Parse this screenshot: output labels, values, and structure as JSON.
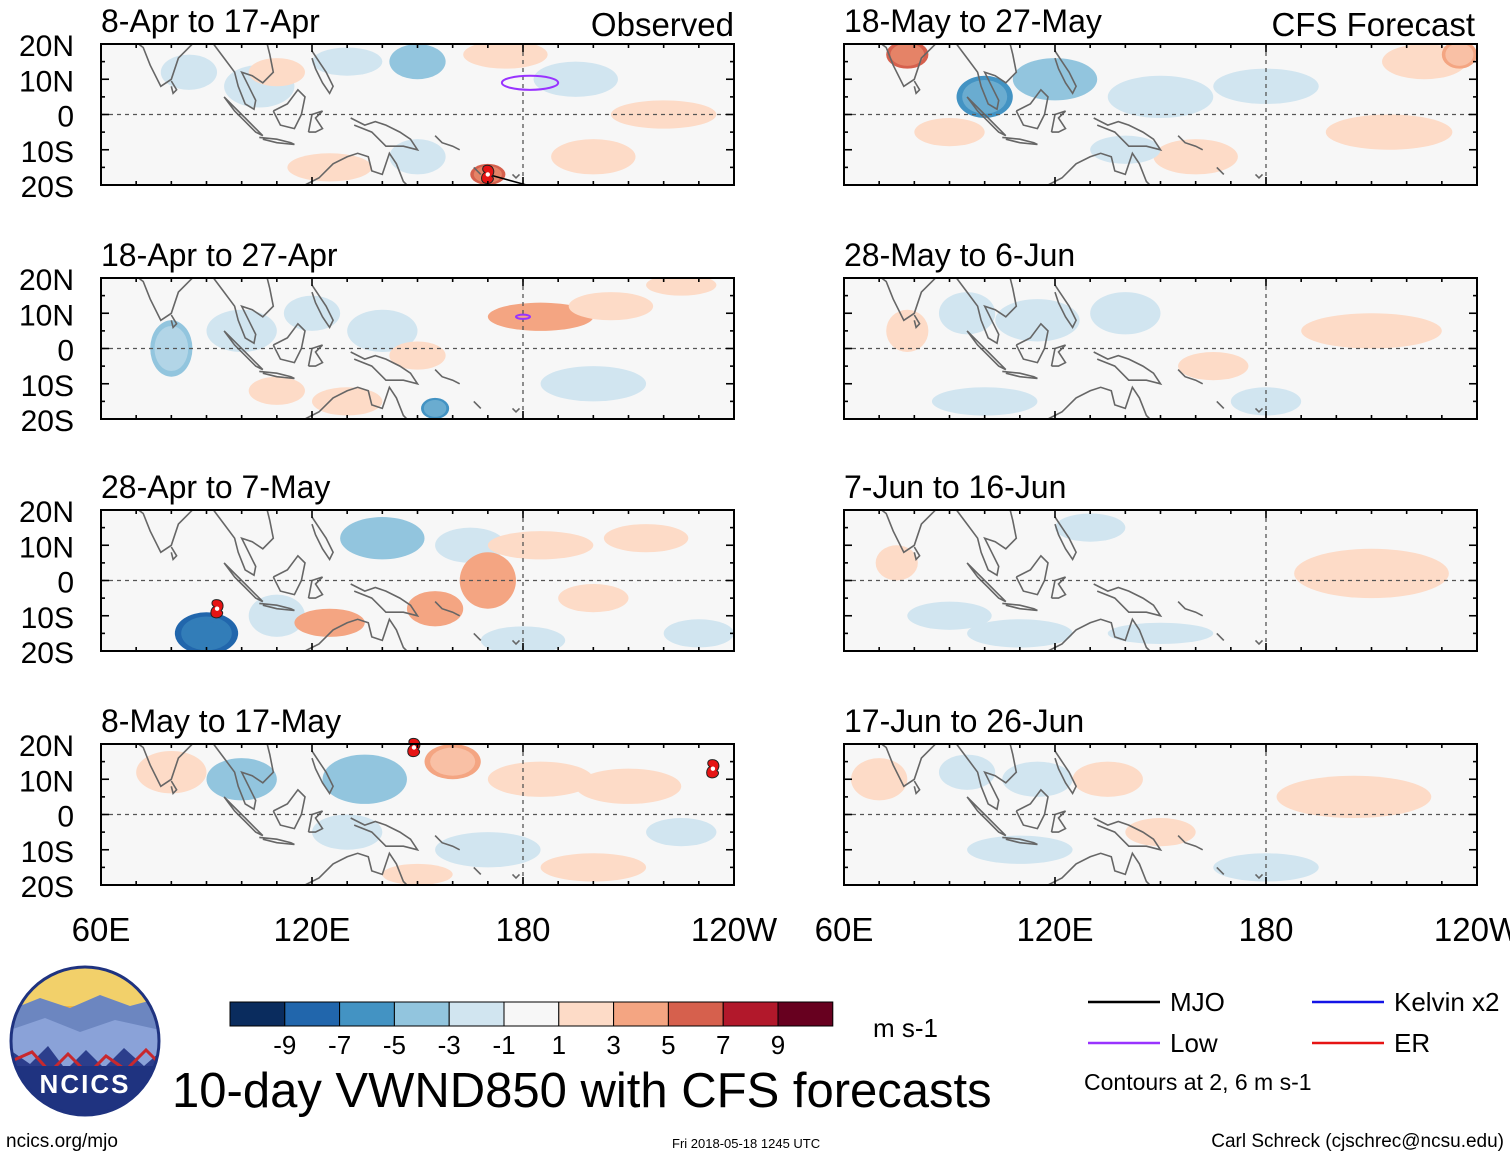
{
  "figure": {
    "title": "10-day VWND850 with CFS forecasts",
    "source_url": "ncics.org/mjo",
    "timestamp": "Fri 2018-05-18 1245 UTC",
    "credit": "Carl Schreck (cjschrec@ncsu.edu)",
    "logo_text": "NCICS",
    "column_labels": {
      "left": "Observed",
      "right": "CFS Forecast"
    }
  },
  "chart_data": {
    "type": "heatmap",
    "variable": "850-hPa meridional wind anomaly",
    "units": "m s-1",
    "x_ticks": [
      "60E",
      "120E",
      "180",
      "120W"
    ],
    "y_ticks": [
      "20N",
      "10N",
      "0",
      "10S",
      "20S"
    ],
    "xlim": [
      60,
      240
    ],
    "ylim": [
      -20,
      20
    ],
    "colorbar": {
      "levels": [
        "-9",
        "-7",
        "-5",
        "-3",
        "-1",
        "1",
        "3",
        "5",
        "7",
        "9"
      ],
      "colors": [
        "#0a2c5e",
        "#2166ac",
        "#4393c3",
        "#92c5de",
        "#d1e5f0",
        "#f7f7f7",
        "#fddbc7",
        "#f4a582",
        "#d6604d",
        "#b2182b",
        "#67001f"
      ],
      "units": "m s-1"
    },
    "panels": [
      {
        "id": "obs1",
        "title": "8-Apr to 17-Apr",
        "kind": "observed",
        "blobs": [
          [
            85,
            12,
            8,
            5,
            -2
          ],
          [
            105,
            8,
            10,
            6,
            -2
          ],
          [
            130,
            15,
            10,
            4,
            -2
          ],
          [
            150,
            15,
            8,
            5,
            -3
          ],
          [
            175,
            17,
            12,
            4,
            2
          ],
          [
            195,
            10,
            12,
            5,
            -2
          ],
          [
            150,
            -12,
            8,
            5,
            -2
          ],
          [
            170,
            -17,
            5,
            3,
            5
          ],
          [
            220,
            0,
            15,
            4,
            2
          ],
          [
            125,
            -15,
            12,
            4,
            2
          ],
          [
            110,
            12,
            8,
            4,
            2
          ],
          [
            200,
            -12,
            12,
            5,
            2
          ]
        ],
        "contours": [
          {
            "system": "Low",
            "lon": 182,
            "lat": 9,
            "rx": 8,
            "ry": 2
          }
        ],
        "mjo_track": [
          [
            170,
            -17
          ],
          [
            181,
            -20
          ],
          [
            185,
            -21
          ]
        ],
        "storms": [
          [
            170,
            -17
          ]
        ]
      },
      {
        "id": "obs2",
        "title": "18-Apr to 27-Apr",
        "kind": "observed",
        "blobs": [
          [
            80,
            0,
            6,
            8,
            -4
          ],
          [
            100,
            5,
            10,
            6,
            -2
          ],
          [
            120,
            10,
            8,
            5,
            -2
          ],
          [
            140,
            5,
            10,
            6,
            -2
          ],
          [
            155,
            -17,
            4,
            3,
            -5
          ],
          [
            130,
            -15,
            10,
            4,
            2
          ],
          [
            185,
            9,
            15,
            4,
            3
          ],
          [
            205,
            12,
            12,
            4,
            2
          ],
          [
            225,
            18,
            10,
            3,
            2
          ],
          [
            200,
            -10,
            15,
            5,
            -2
          ],
          [
            150,
            -2,
            8,
            4,
            2
          ],
          [
            110,
            -12,
            8,
            4,
            2
          ]
        ],
        "contours": [
          {
            "system": "Low",
            "lon": 180,
            "lat": 9,
            "rx": 2,
            "ry": 0.6
          }
        ],
        "mjo_track": [],
        "storms": []
      },
      {
        "id": "obs3",
        "title": "28-Apr to 7-May",
        "kind": "observed",
        "blobs": [
          [
            90,
            -15,
            9,
            6,
            -8
          ],
          [
            110,
            -10,
            8,
            6,
            -2
          ],
          [
            140,
            12,
            12,
            6,
            -3
          ],
          [
            165,
            10,
            10,
            5,
            -2
          ],
          [
            170,
            0,
            8,
            8,
            3
          ],
          [
            155,
            -8,
            8,
            5,
            3
          ],
          [
            185,
            10,
            15,
            4,
            2
          ],
          [
            215,
            12,
            12,
            4,
            2
          ],
          [
            200,
            -5,
            10,
            4,
            2
          ],
          [
            180,
            -17,
            12,
            4,
            -2
          ],
          [
            230,
            -15,
            10,
            4,
            -2
          ],
          [
            125,
            -12,
            10,
            4,
            3
          ]
        ],
        "contours": [],
        "mjo_track": [],
        "storms": [
          [
            93,
            -8
          ]
        ]
      },
      {
        "id": "obs4",
        "title": "8-May to 17-May",
        "kind": "observed",
        "blobs": [
          [
            80,
            12,
            10,
            6,
            2
          ],
          [
            100,
            10,
            10,
            6,
            -3
          ],
          [
            135,
            10,
            12,
            7,
            -3
          ],
          [
            160,
            15,
            8,
            5,
            4
          ],
          [
            185,
            10,
            15,
            5,
            2
          ],
          [
            210,
            8,
            15,
            5,
            2
          ],
          [
            130,
            -5,
            10,
            5,
            -2
          ],
          [
            170,
            -10,
            15,
            5,
            -2
          ],
          [
            200,
            -15,
            15,
            4,
            2
          ],
          [
            225,
            -5,
            10,
            4,
            -2
          ],
          [
            150,
            -17,
            10,
            3,
            2
          ]
        ],
        "contours": [],
        "mjo_track": [],
        "storms": [
          [
            149,
            19
          ],
          [
            234,
            13
          ]
        ]
      },
      {
        "id": "fcst1",
        "title": "18-May to 27-May",
        "kind": "forecast",
        "blobs": [
          [
            78,
            17,
            6,
            4,
            5
          ],
          [
            100,
            5,
            8,
            6,
            -5
          ],
          [
            120,
            10,
            12,
            6,
            -3
          ],
          [
            150,
            5,
            15,
            6,
            -2
          ],
          [
            180,
            8,
            15,
            5,
            -2
          ],
          [
            215,
            -5,
            18,
            5,
            2
          ],
          [
            225,
            15,
            12,
            5,
            2
          ],
          [
            235,
            17,
            5,
            4,
            4
          ],
          [
            160,
            -12,
            12,
            5,
            2
          ],
          [
            140,
            -10,
            10,
            4,
            -2
          ],
          [
            90,
            -5,
            10,
            4,
            2
          ]
        ],
        "contours": [],
        "mjo_track": [],
        "storms": []
      },
      {
        "id": "fcst2",
        "title": "28-May to 6-Jun",
        "kind": "forecast",
        "blobs": [
          [
            78,
            5,
            6,
            6,
            2
          ],
          [
            95,
            10,
            8,
            6,
            -2
          ],
          [
            115,
            8,
            12,
            6,
            -2
          ],
          [
            140,
            10,
            10,
            6,
            -2
          ],
          [
            210,
            5,
            20,
            5,
            2
          ],
          [
            100,
            -15,
            15,
            4,
            -2
          ],
          [
            165,
            -5,
            10,
            4,
            2
          ],
          [
            180,
            -15,
            10,
            4,
            -2
          ]
        ],
        "contours": [],
        "mjo_track": [],
        "storms": []
      },
      {
        "id": "fcst3",
        "title": "7-Jun to 16-Jun",
        "kind": "forecast",
        "blobs": [
          [
            210,
            2,
            22,
            7,
            2
          ],
          [
            90,
            -10,
            12,
            4,
            -2
          ],
          [
            110,
            -15,
            15,
            4,
            -2
          ],
          [
            150,
            -15,
            15,
            3,
            -2
          ],
          [
            75,
            5,
            6,
            5,
            2
          ],
          [
            130,
            15,
            10,
            4,
            -2
          ]
        ],
        "contours": [],
        "mjo_track": [],
        "storms": []
      },
      {
        "id": "fcst4",
        "title": "17-Jun to 26-Jun",
        "kind": "forecast",
        "blobs": [
          [
            70,
            10,
            8,
            6,
            2
          ],
          [
            95,
            12,
            8,
            5,
            -2
          ],
          [
            115,
            10,
            10,
            5,
            -2
          ],
          [
            135,
            10,
            10,
            5,
            2
          ],
          [
            205,
            5,
            22,
            6,
            2
          ],
          [
            110,
            -10,
            15,
            4,
            -2
          ],
          [
            180,
            -15,
            15,
            4,
            -2
          ],
          [
            150,
            -5,
            10,
            4,
            2
          ]
        ],
        "contours": [],
        "mjo_track": [],
        "storms": []
      }
    ],
    "legend": [
      {
        "name": "MJO",
        "color": "#000000"
      },
      {
        "name": "Kelvin x2",
        "color": "#1414e6"
      },
      {
        "name": "Low",
        "color": "#9933ff"
      },
      {
        "name": "ER",
        "color": "#e61414"
      }
    ],
    "contour_note": "Contours at 2, 6 m s-1"
  }
}
